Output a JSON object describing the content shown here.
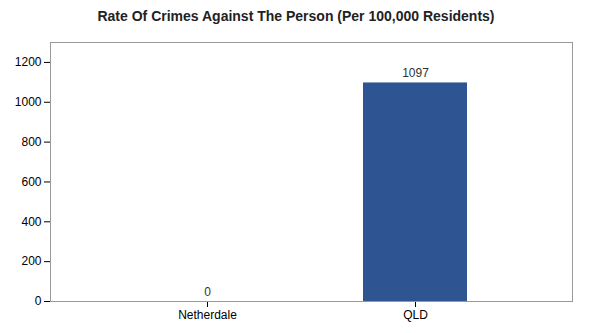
{
  "chart_data": {
    "type": "bar",
    "title": "Rate Of Crimes Against The Person (Per 100,000 Residents)",
    "categories": [
      "Netherdale",
      "QLD"
    ],
    "values": [
      0,
      1097
    ],
    "color": "#2e5591",
    "ylim": [
      0,
      1300
    ],
    "yticks": [
      0,
      200,
      400,
      600,
      800,
      1000,
      1200
    ],
    "grid": false,
    "data_labels": true
  }
}
